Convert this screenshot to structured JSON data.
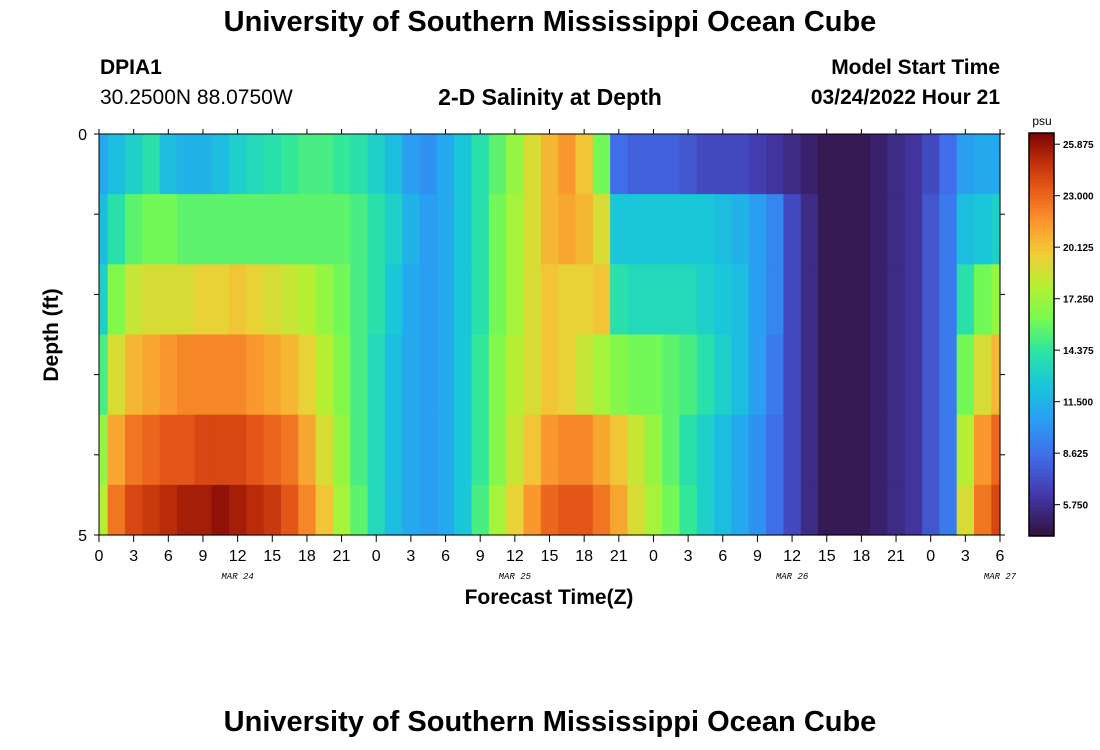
{
  "header": {
    "title": "University of Southern Mississippi Ocean Cube",
    "station_id": "DPIA1",
    "station_coords": "30.2500N  88.0750W",
    "subtitle": "2-D Salinity at Depth",
    "model_start_label": "Model Start Time",
    "model_start_value": "03/24/2022 Hour 21"
  },
  "footer": {
    "title": "University of Southern Mississippi Ocean Cube"
  },
  "chart_data": {
    "type": "heatmap",
    "title": "2-D Salinity at Depth",
    "xlabel": "Forecast Time(Z)",
    "ylabel": "Depth (ft)",
    "x_tick_labels": [
      "0",
      "3",
      "6",
      "9",
      "12",
      "15",
      "18",
      "21",
      "0",
      "3",
      "6",
      "9",
      "12",
      "15",
      "18",
      "21",
      "0",
      "3",
      "6",
      "9",
      "12",
      "15",
      "18",
      "21",
      "0",
      "3",
      "6"
    ],
    "date_labels": [
      {
        "label": "MAR 24",
        "hour": 12
      },
      {
        "label": "MAR 25",
        "hour": 36
      },
      {
        "label": "MAR 26",
        "hour": 60
      },
      {
        "label": "MAR 27",
        "hour": 78
      }
    ],
    "x_range_hours": [
      0,
      78
    ],
    "y_tick_labels": [
      "0",
      "5"
    ],
    "ylim": [
      0,
      5
    ],
    "colorbar": {
      "unit": "psu",
      "min": 4.0,
      "max": 26.5,
      "tick_values": [
        25.875,
        23.0,
        20.125,
        17.25,
        14.375,
        11.5,
        8.625,
        5.75
      ],
      "tick_labels": [
        "25.875",
        "23.000",
        "20.125",
        "17.250",
        "14.375",
        "11.500",
        "8.625",
        "5.750"
      ]
    },
    "depth_layers_ft": [
      0.25,
      1.25,
      2.0,
      3.0,
      4.0,
      4.75
    ],
    "x_hours": [
      0,
      1.5,
      3,
      4.5,
      6,
      7.5,
      9,
      10.5,
      12,
      13.5,
      15,
      16.5,
      18,
      19.5,
      21,
      22.5,
      24,
      25.5,
      27,
      28.5,
      30,
      31.5,
      33,
      34.5,
      36,
      37.5,
      39,
      40.5,
      42,
      43.5,
      45,
      46.5,
      48,
      49.5,
      51,
      52.5,
      54,
      55.5,
      57,
      58.5,
      60,
      61.5,
      63,
      64.5,
      66,
      67.5,
      69,
      70.5,
      72,
      73.5,
      75,
      76.5,
      78
    ],
    "salinity_psu": [
      [
        11.0,
        12.0,
        13.0,
        14.0,
        12.0,
        11.5,
        11.5,
        12.0,
        13.0,
        13.5,
        14.0,
        14.5,
        15.0,
        15.0,
        14.5,
        14.0,
        13.0,
        12.0,
        10.5,
        10.0,
        11.0,
        12.5,
        14.0,
        15.5,
        17.0,
        19.0,
        20.5,
        21.5,
        20.0,
        16.0,
        8.5,
        8.0,
        8.0,
        8.0,
        7.5,
        7.0,
        7.0,
        7.0,
        6.5,
        6.0,
        5.5,
        5.0,
        4.5,
        4.5,
        4.5,
        5.0,
        5.5,
        6.0,
        7.0,
        8.5,
        10.5,
        11.0,
        11.0
      ],
      [
        12.0,
        14.0,
        15.5,
        16.0,
        16.0,
        15.5,
        15.5,
        15.5,
        15.5,
        15.5,
        15.5,
        15.5,
        15.5,
        15.5,
        15.5,
        15.0,
        14.0,
        13.0,
        11.5,
        10.5,
        11.0,
        12.5,
        14.0,
        16.0,
        17.5,
        19.0,
        20.5,
        21.0,
        20.5,
        19.0,
        12.5,
        12.5,
        12.5,
        12.5,
        12.5,
        12.5,
        12.0,
        11.5,
        10.5,
        9.5,
        7.0,
        5.5,
        4.5,
        4.5,
        4.5,
        5.0,
        5.5,
        6.0,
        7.5,
        9.0,
        12.0,
        12.5,
        13.0
      ],
      [
        13.0,
        16.5,
        18.5,
        19.0,
        19.0,
        19.0,
        19.5,
        19.5,
        20.0,
        19.5,
        19.0,
        18.5,
        18.0,
        17.0,
        16.0,
        15.0,
        14.0,
        12.5,
        11.0,
        10.5,
        11.0,
        12.5,
        14.0,
        16.0,
        17.5,
        19.0,
        20.0,
        19.5,
        19.5,
        20.0,
        14.0,
        13.5,
        13.5,
        13.5,
        13.5,
        13.0,
        12.5,
        12.0,
        10.5,
        9.5,
        7.0,
        5.5,
        4.5,
        4.5,
        4.5,
        5.0,
        5.5,
        6.0,
        7.5,
        9.0,
        14.0,
        16.0,
        17.0
      ],
      [
        15.0,
        19.0,
        20.5,
        21.0,
        21.5,
        22.0,
        22.0,
        22.0,
        22.0,
        21.5,
        21.0,
        20.5,
        19.5,
        18.0,
        16.5,
        15.0,
        13.5,
        12.0,
        11.0,
        10.5,
        11.0,
        12.5,
        14.5,
        16.5,
        18.0,
        19.0,
        20.0,
        19.5,
        18.5,
        17.5,
        16.5,
        16.0,
        16.0,
        15.5,
        15.0,
        14.0,
        13.0,
        12.0,
        10.5,
        9.0,
        7.0,
        5.5,
        4.5,
        4.5,
        4.5,
        5.0,
        5.5,
        6.0,
        7.5,
        9.0,
        16.0,
        19.0,
        20.5
      ],
      [
        17.0,
        21.0,
        22.5,
        23.0,
        23.5,
        23.5,
        24.0,
        24.0,
        24.0,
        23.5,
        23.0,
        22.5,
        21.0,
        19.0,
        17.0,
        15.0,
        13.5,
        12.0,
        11.0,
        10.5,
        11.0,
        12.5,
        14.5,
        16.5,
        18.5,
        20.0,
        21.5,
        22.0,
        22.0,
        21.0,
        20.0,
        18.5,
        17.0,
        15.5,
        14.0,
        13.0,
        12.0,
        11.0,
        10.0,
        8.5,
        7.0,
        5.5,
        4.5,
        4.5,
        4.5,
        5.0,
        5.5,
        6.0,
        7.5,
        9.0,
        18.0,
        21.5,
        23.0
      ],
      [
        18.0,
        22.5,
        24.0,
        24.5,
        25.0,
        25.5,
        25.5,
        26.0,
        25.5,
        25.0,
        24.5,
        23.5,
        22.0,
        20.0,
        17.5,
        15.5,
        13.5,
        12.0,
        11.0,
        10.5,
        11.0,
        12.5,
        15.0,
        17.5,
        19.5,
        21.5,
        23.0,
        23.5,
        23.5,
        22.5,
        21.0,
        19.0,
        17.5,
        16.0,
        14.5,
        13.0,
        12.0,
        11.0,
        10.0,
        8.5,
        7.0,
        5.5,
        4.5,
        4.5,
        4.5,
        5.0,
        5.5,
        6.0,
        7.5,
        9.0,
        19.0,
        22.5,
        24.0
      ]
    ]
  }
}
